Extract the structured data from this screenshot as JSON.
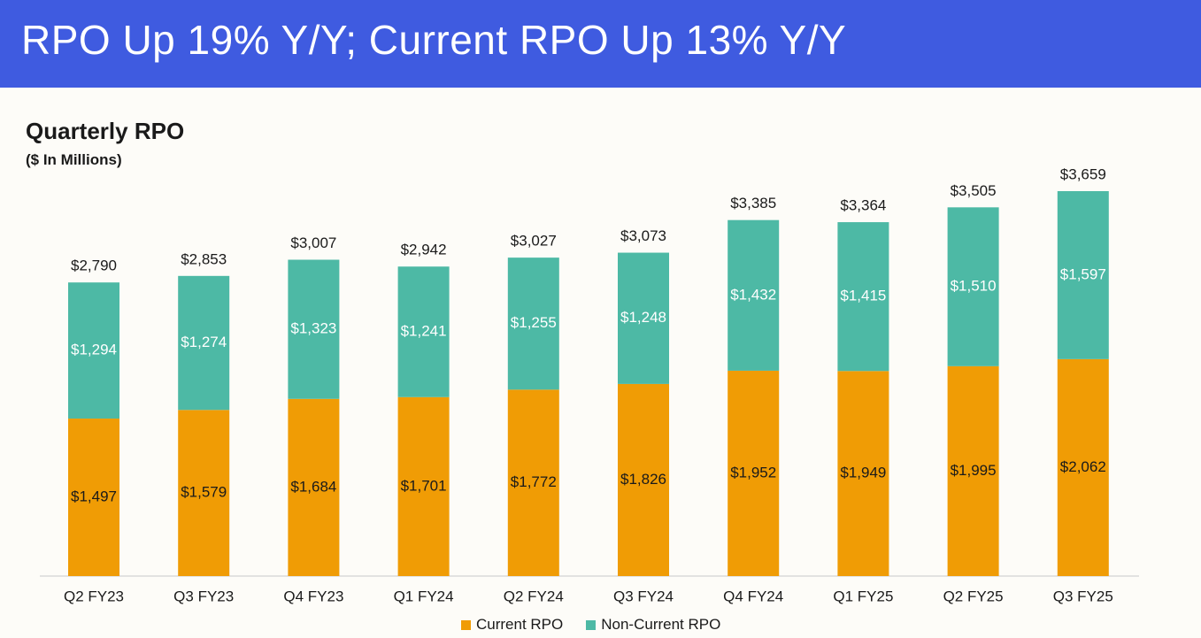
{
  "header": {
    "title": "RPO Up 19% Y/Y; Current RPO Up 13% Y/Y"
  },
  "colors": {
    "banner": "#3f5be0",
    "current": "#f09c05",
    "noncurrent": "#4db9a5"
  },
  "chart_data": {
    "type": "bar",
    "stacked": true,
    "title": "Quarterly RPO",
    "subtitle": "($ In Millions)",
    "xlabel": "",
    "ylabel": "",
    "ylim": [
      0,
      3659
    ],
    "grid": false,
    "legend_position": "bottom-center",
    "categories": [
      "Q2 FY23",
      "Q3 FY23",
      "Q4 FY23",
      "Q1 FY24",
      "Q2 FY24",
      "Q3 FY24",
      "Q4 FY24",
      "Q1 FY25",
      "Q2 FY25",
      "Q3 FY25"
    ],
    "series": [
      {
        "name": "Current RPO",
        "color": "#f09c05",
        "values": [
          1497,
          1579,
          1684,
          1701,
          1772,
          1826,
          1952,
          1949,
          1995,
          2062
        ],
        "labels": [
          "$1,497",
          "$1,579",
          "$1,684",
          "$1,701",
          "$1,772",
          "$1,826",
          "$1,952",
          "$1,949",
          "$1,995",
          "$2,062"
        ]
      },
      {
        "name": "Non-Current RPO",
        "color": "#4db9a5",
        "values": [
          1294,
          1274,
          1323,
          1241,
          1255,
          1248,
          1432,
          1415,
          1510,
          1597
        ],
        "labels": [
          "$1,294",
          "$1,274",
          "$1,323",
          "$1,241",
          "$1,255",
          "$1,248",
          "$1,432",
          "$1,415",
          "$1,510",
          "$1,597"
        ]
      }
    ],
    "totals": [
      2790,
      2853,
      3007,
      2942,
      3027,
      3073,
      3385,
      3364,
      3505,
      3659
    ],
    "total_labels": [
      "$2,790",
      "$2,853",
      "$3,007",
      "$2,942",
      "$3,027",
      "$3,073",
      "$3,385",
      "$3,364",
      "$3,505",
      "$3,659"
    ]
  }
}
